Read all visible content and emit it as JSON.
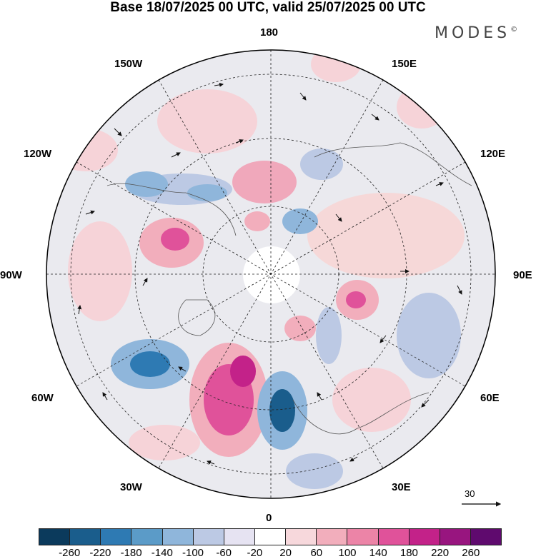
{
  "title": "Base 18/07/2025 00 UTC, valid 25/07/2025 00 UTC",
  "brand": "MODES",
  "brand_mark": "©",
  "longitude_labels": {
    "top": "180",
    "bottom": "0",
    "left": "90W",
    "right": "90E",
    "upper_left_1": "150W",
    "upper_left_2": "120W",
    "lower_left_1": "60W",
    "lower_left_2": "30W",
    "upper_right_1": "150E",
    "upper_right_2": "120E",
    "lower_right_1": "60E",
    "lower_right_2": "30E"
  },
  "vector_scale_label": "30",
  "colorbar": {
    "colors": [
      "#0b3a5c",
      "#1a5d8c",
      "#2e7ab3",
      "#5b9bc8",
      "#8fb6db",
      "#bcc9e4",
      "#e6e3f2",
      "#ffffff",
      "#f7d8dc",
      "#f2aebc",
      "#ec84a7",
      "#e0529a",
      "#c32289",
      "#98157f",
      "#5f0a6e"
    ],
    "tick_labels": [
      "-260",
      "-220",
      "-180",
      "-140",
      "-100",
      "-60",
      "-20",
      "20",
      "60",
      "100",
      "140",
      "180",
      "220",
      "260"
    ]
  }
}
